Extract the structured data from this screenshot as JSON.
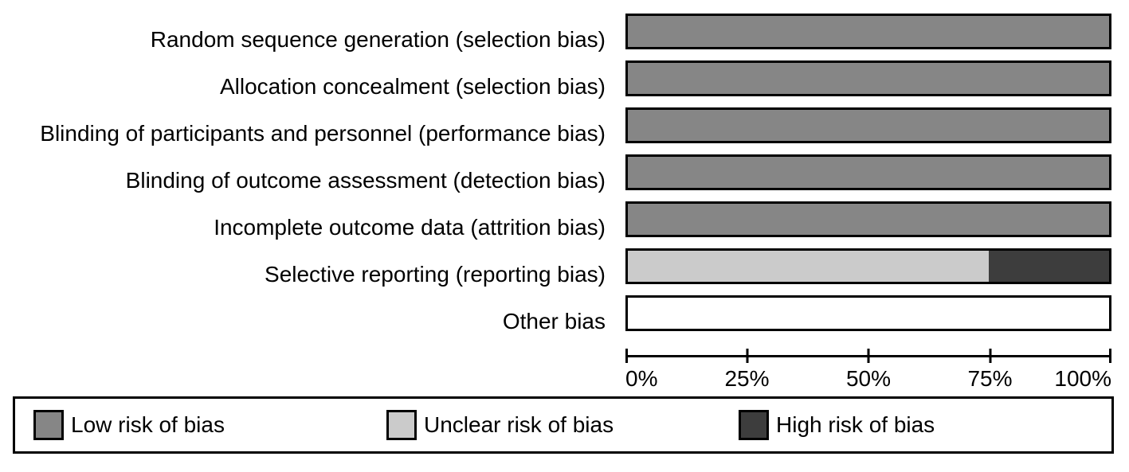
{
  "colors": {
    "low": "#868686",
    "unclear": "#cbcbcb",
    "high": "#3d3d3d",
    "outline": "#000000",
    "background": "#ffffff"
  },
  "chart_data": {
    "type": "bar",
    "orientation": "horizontal",
    "stacked": true,
    "categories": [
      "Random sequence generation (selection bias)",
      "Allocation concealment (selection bias)",
      "Blinding of participants and personnel (performance bias)",
      "Blinding of outcome assessment (detection bias)",
      "Incomplete outcome data (attrition bias)",
      "Selective reporting (reporting bias)",
      "Other bias"
    ],
    "series": [
      {
        "name": "Low risk of bias",
        "color": "#868686",
        "values": [
          100,
          100,
          100,
          100,
          100,
          0,
          0
        ]
      },
      {
        "name": "Unclear risk of bias",
        "color": "#cbcbcb",
        "values": [
          0,
          0,
          0,
          0,
          0,
          75,
          0
        ]
      },
      {
        "name": "High risk of bias",
        "color": "#3d3d3d",
        "values": [
          0,
          0,
          0,
          0,
          0,
          25,
          0
        ]
      }
    ],
    "xlim": [
      0,
      100
    ],
    "x_tick_values": [
      0,
      25,
      50,
      75,
      100
    ],
    "x_tick_labels": [
      "0%",
      "25%",
      "50%",
      "75%",
      "100%"
    ],
    "grid": false,
    "legend_position": "bottom",
    "note": "Other bias row is an empty (white) bar with no assessments shown"
  },
  "legend": {
    "items": [
      {
        "label": "Low risk of bias",
        "color": "#868686"
      },
      {
        "label": "Unclear risk of bias",
        "color": "#cbcbcb"
      },
      {
        "label": "High risk of bias",
        "color": "#3d3d3d"
      }
    ]
  }
}
